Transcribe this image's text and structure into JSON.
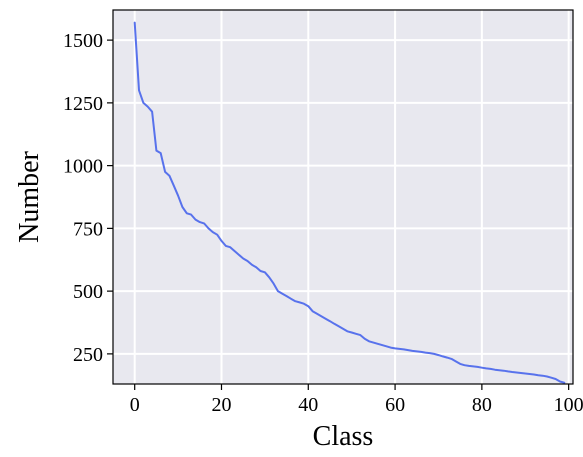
{
  "chart_data": {
    "type": "line",
    "title": "",
    "xlabel": "Class",
    "ylabel": "Number",
    "xlim": [
      -5,
      101
    ],
    "ylim": [
      130,
      1620
    ],
    "xticks": [
      0,
      20,
      40,
      60,
      80,
      100
    ],
    "yticks": [
      250,
      500,
      750,
      1000,
      1250,
      1500
    ],
    "grid": true,
    "colors": {
      "background": "#e8e8ef",
      "grid": "#ffffff",
      "line": "#5872ec"
    },
    "series": [
      {
        "x": [
          0,
          1,
          2,
          3,
          4,
          5,
          6,
          7,
          8,
          9,
          10,
          11,
          12,
          13,
          14,
          15,
          16,
          17,
          18,
          19,
          20,
          21,
          22,
          23,
          24,
          25,
          26,
          27,
          28,
          29,
          30,
          31,
          32,
          33,
          34,
          35,
          36,
          37,
          38,
          39,
          40,
          41,
          42,
          43,
          44,
          45,
          46,
          47,
          48,
          49,
          50,
          51,
          52,
          53,
          54,
          55,
          56,
          57,
          58,
          59,
          60,
          61,
          62,
          63,
          64,
          65,
          66,
          67,
          68,
          69,
          70,
          71,
          72,
          73,
          74,
          75,
          76,
          77,
          78,
          79,
          80,
          81,
          82,
          83,
          84,
          85,
          86,
          87,
          88,
          89,
          90,
          91,
          92,
          93,
          94,
          95,
          96,
          97,
          98,
          99
        ],
        "values": [
          1570,
          1300,
          1250,
          1235,
          1215,
          1060,
          1050,
          975,
          960,
          920,
          880,
          835,
          810,
          805,
          785,
          775,
          770,
          750,
          735,
          725,
          700,
          680,
          675,
          660,
          645,
          630,
          620,
          605,
          595,
          580,
          575,
          555,
          530,
          500,
          490,
          480,
          470,
          460,
          455,
          450,
          440,
          420,
          410,
          400,
          390,
          380,
          370,
          360,
          350,
          340,
          335,
          330,
          325,
          310,
          300,
          295,
          290,
          285,
          280,
          275,
          272,
          270,
          268,
          265,
          262,
          260,
          258,
          255,
          253,
          250,
          245,
          240,
          235,
          230,
          220,
          210,
          205,
          202,
          200,
          198,
          195,
          192,
          190,
          187,
          185,
          183,
          180,
          178,
          176,
          174,
          172,
          170,
          168,
          165,
          163,
          160,
          155,
          150,
          140,
          135
        ]
      }
    ]
  }
}
